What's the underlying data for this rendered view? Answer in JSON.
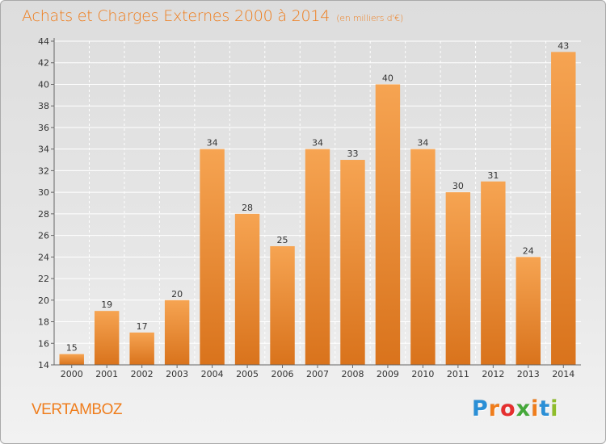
{
  "title": "Achats et Charges Externes 2000 à 2014",
  "unit": "(en milliers d'€)",
  "commune": "VERTAMBOZ",
  "logo": {
    "letters": [
      "P",
      "r",
      "o",
      "x",
      "i",
      "t",
      "i"
    ],
    "colors": [
      "#2a8fd6",
      "#ef7d1c",
      "#e52f2f",
      "#45a83a",
      "#ef7d1c",
      "#2a8fd6",
      "#8fbd2a"
    ]
  },
  "colors": {
    "accent": "#ef7d1c",
    "bar_top": "#f6a452",
    "bar_bottom": "#d9731c"
  },
  "chart_data": {
    "type": "bar",
    "categories": [
      "2000",
      "2001",
      "2002",
      "2003",
      "2004",
      "2005",
      "2006",
      "2007",
      "2008",
      "2009",
      "2010",
      "2011",
      "2012",
      "2013",
      "2014"
    ],
    "values": [
      15,
      19,
      17,
      20,
      34,
      28,
      25,
      34,
      33,
      40,
      34,
      30,
      31,
      24,
      43
    ],
    "value_labels": [
      "15",
      "19",
      "17",
      "20",
      "34",
      "28",
      "25",
      "34",
      "33",
      "40",
      "34",
      "30",
      "31",
      "24",
      "43"
    ],
    "yticks": [
      "14",
      "16",
      "18",
      "20",
      "22",
      "24",
      "26",
      "28",
      "30",
      "32",
      "34",
      "36",
      "38",
      "40",
      "42",
      "44"
    ],
    "ylim": [
      14,
      44
    ],
    "grid": true,
    "title": "Achats et Charges Externes 2000 à 2014",
    "xlabel": "",
    "ylabel": ""
  }
}
